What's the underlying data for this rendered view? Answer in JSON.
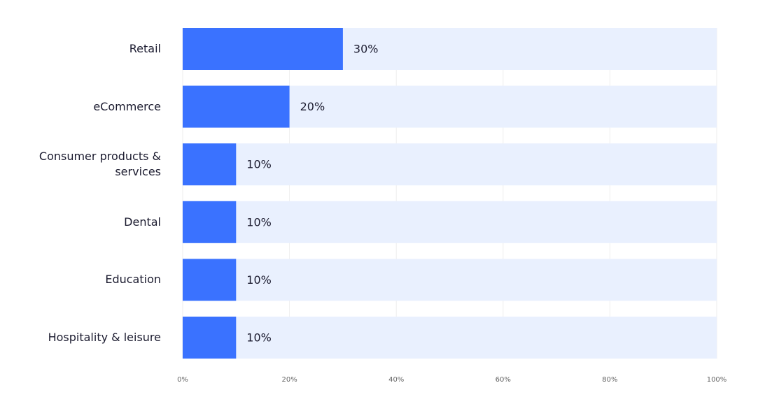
{
  "chart_data": {
    "type": "bar",
    "orientation": "horizontal",
    "categories": [
      "Retail",
      "eCommerce",
      "Consumer products & services",
      "Dental",
      "Education",
      "Hospitality & leisure"
    ],
    "values": [
      30,
      20,
      10,
      10,
      10,
      10
    ],
    "value_labels": [
      "30%",
      "20%",
      "10%",
      "10%",
      "10%",
      "10%"
    ],
    "color": "#3a72ff",
    "track_color": "#e9f0fe",
    "xlim": [
      0,
      100
    ],
    "xticks": [
      {
        "value": 0,
        "label": "0%"
      },
      {
        "value": 20,
        "label": "20%"
      },
      {
        "value": 40,
        "label": "40%"
      },
      {
        "value": 60,
        "label": "60%"
      },
      {
        "value": 80,
        "label": "80%"
      },
      {
        "value": 100,
        "label": "100%"
      }
    ],
    "grid": true
  }
}
